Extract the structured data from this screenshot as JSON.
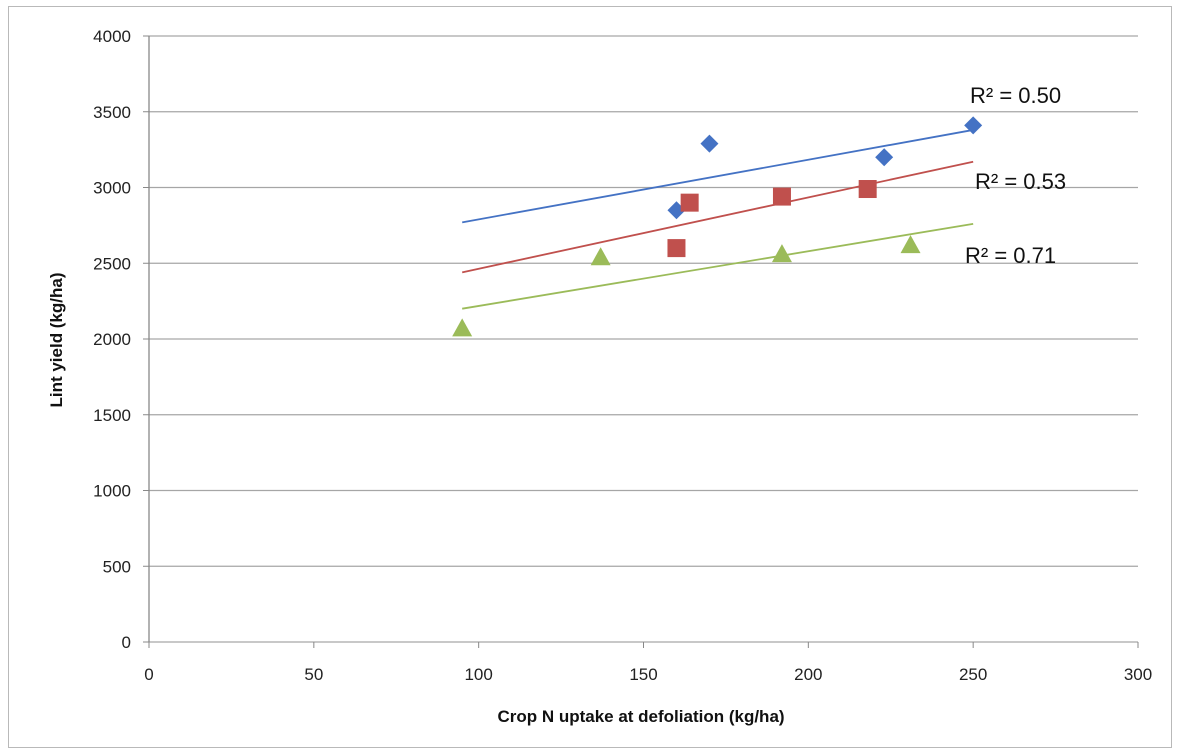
{
  "chart_data": {
    "type": "scatter",
    "xlabel": "Crop N uptake at defoliation (kg/ha)",
    "ylabel": "Lint yield (kg/ha)",
    "xlim": [
      0,
      300
    ],
    "ylim": [
      0,
      4000
    ],
    "x_ticks": [
      "0",
      "50",
      "100",
      "150",
      "200",
      "250",
      "300"
    ],
    "y_ticks": [
      "0",
      "500",
      "1000",
      "1500",
      "2000",
      "2500",
      "3000",
      "3500",
      "4000"
    ],
    "grid": "horizontal",
    "series": [
      {
        "marker": "diamond",
        "color": "#4472C4",
        "points": [
          [
            160,
            2850
          ],
          [
            170,
            3290
          ],
          [
            223,
            3200
          ],
          [
            250,
            3410
          ]
        ],
        "trendline": [
          [
            95,
            2770
          ],
          [
            250,
            3380
          ]
        ],
        "r2_label": "R² = 0.50"
      },
      {
        "marker": "square",
        "color": "#C0504D",
        "points": [
          [
            160,
            2600
          ],
          [
            164,
            2900
          ],
          [
            192,
            2940
          ],
          [
            218,
            2990
          ]
        ],
        "trendline": [
          [
            95,
            2440
          ],
          [
            250,
            3170
          ]
        ],
        "r2_label": "R² = 0.53"
      },
      {
        "marker": "triangle",
        "color": "#9BBB59",
        "points": [
          [
            95,
            2070
          ],
          [
            137,
            2540
          ],
          [
            192,
            2560
          ],
          [
            231,
            2620
          ]
        ],
        "trendline": [
          [
            95,
            2200
          ],
          [
            250,
            2760
          ]
        ],
        "r2_label": "R² = 0.71"
      }
    ]
  }
}
